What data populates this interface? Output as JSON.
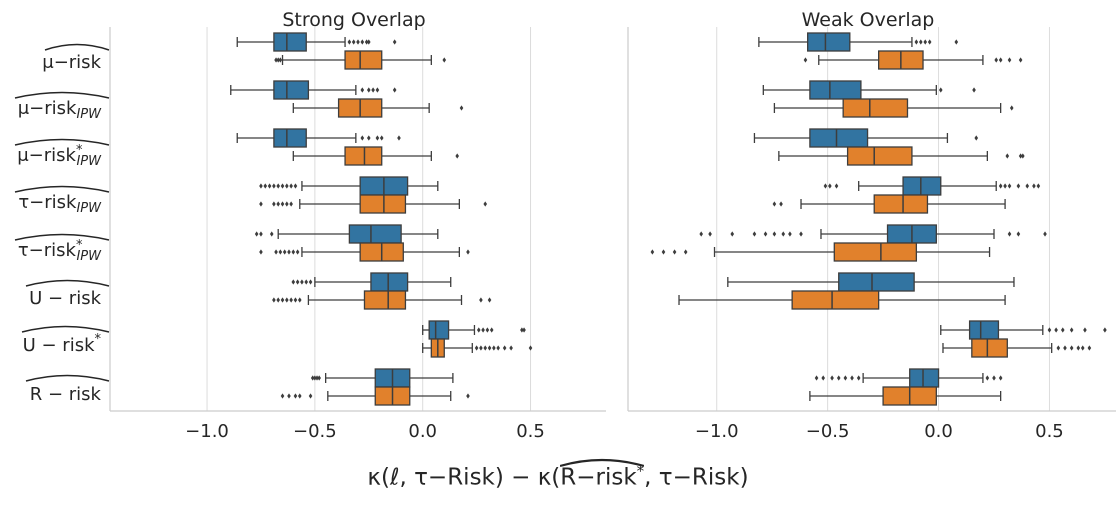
{
  "figure": {
    "xlabel": "κ(ℓ, τ−Risk) − κ(R−risk*, τ−Risk)"
  },
  "colors": {
    "blue": "#3274a1",
    "orange": "#e1812c",
    "grid": "#dcdcdc",
    "axis": "#cccccc",
    "text": "#262626"
  },
  "chart_data": [
    {
      "type": "box",
      "orientation": "horizontal",
      "title": "Strong Overlap",
      "xlim": [
        -1.45,
        0.85
      ],
      "xticks": [
        -1.0,
        -0.5,
        0.0,
        0.5
      ],
      "xtick_labels": [
        "−1.0",
        "−0.5",
        "0.0",
        "0.5"
      ],
      "grid": "vertical",
      "categories": [
        "μ−risk",
        "μ−risk_IPW",
        "μ−risk*_IPW",
        "τ−risk_IPW",
        "τ−risk*_IPW",
        "U − risk",
        "U − risk*",
        "R − risk"
      ],
      "series": [
        {
          "color": "blue",
          "boxes": [
            {
              "wl": -0.86,
              "q1": -0.69,
              "med": -0.63,
              "q3": -0.54,
              "wh": -0.36,
              "fliers": [
                -0.34,
                -0.32,
                -0.3,
                -0.28,
                -0.26,
                -0.25,
                -0.13
              ]
            },
            {
              "wl": -0.89,
              "q1": -0.69,
              "med": -0.63,
              "q3": -0.53,
              "wh": -0.31,
              "fliers": [
                -0.28,
                -0.25,
                -0.23,
                -0.21,
                -0.13
              ]
            },
            {
              "wl": -0.86,
              "q1": -0.69,
              "med": -0.63,
              "q3": -0.54,
              "wh": -0.31,
              "fliers": [
                -0.28,
                -0.25,
                -0.21,
                -0.19,
                -0.11
              ]
            },
            {
              "wl": -0.56,
              "q1": -0.29,
              "med": -0.18,
              "q3": -0.07,
              "wh": 0.07,
              "fliers": [
                -0.75,
                -0.73,
                -0.71,
                -0.69,
                -0.67,
                -0.65,
                -0.63,
                -0.61,
                -0.59
              ]
            },
            {
              "wl": -0.67,
              "q1": -0.34,
              "med": -0.24,
              "q3": -0.1,
              "wh": 0.07,
              "fliers": [
                -0.77,
                -0.75,
                -0.7
              ]
            },
            {
              "wl": -0.5,
              "q1": -0.24,
              "med": -0.16,
              "q3": -0.07,
              "wh": 0.13,
              "fliers": [
                -0.6,
                -0.58,
                -0.56,
                -0.54,
                -0.52
              ]
            },
            {
              "wl": 0.0,
              "q1": 0.03,
              "med": 0.06,
              "q3": 0.12,
              "wh": 0.24,
              "fliers": [
                0.26,
                0.28,
                0.3,
                0.32,
                0.46,
                0.47
              ]
            },
            {
              "wl": -0.45,
              "q1": -0.22,
              "med": -0.14,
              "q3": -0.06,
              "wh": 0.14,
              "fliers": [
                -0.51,
                -0.5,
                -0.49,
                -0.48
              ]
            }
          ]
        },
        {
          "color": "orange",
          "boxes": [
            {
              "wl": -0.65,
              "q1": -0.36,
              "med": -0.29,
              "q3": -0.19,
              "wh": 0.04,
              "fliers": [
                -0.68,
                -0.67,
                -0.66,
                0.1
              ]
            },
            {
              "wl": -0.6,
              "q1": -0.39,
              "med": -0.29,
              "q3": -0.19,
              "wh": 0.03,
              "fliers": [
                0.18
              ]
            },
            {
              "wl": -0.6,
              "q1": -0.36,
              "med": -0.27,
              "q3": -0.19,
              "wh": 0.04,
              "fliers": [
                0.16
              ]
            },
            {
              "wl": -0.57,
              "q1": -0.29,
              "med": -0.18,
              "q3": -0.08,
              "wh": 0.17,
              "fliers": [
                -0.75,
                -0.69,
                -0.67,
                -0.65,
                -0.63,
                -0.61,
                0.29
              ]
            },
            {
              "wl": -0.56,
              "q1": -0.29,
              "med": -0.19,
              "q3": -0.09,
              "wh": 0.17,
              "fliers": [
                -0.75,
                -0.68,
                -0.66,
                -0.64,
                -0.62,
                -0.6,
                -0.58,
                0.21
              ]
            },
            {
              "wl": -0.53,
              "q1": -0.27,
              "med": -0.16,
              "q3": -0.08,
              "wh": 0.18,
              "fliers": [
                -0.69,
                -0.67,
                -0.65,
                -0.63,
                -0.61,
                -0.59,
                -0.57,
                0.27,
                0.31
              ]
            },
            {
              "wl": 0.0,
              "q1": 0.04,
              "med": 0.07,
              "q3": 0.1,
              "wh": 0.23,
              "fliers": [
                0.25,
                0.27,
                0.29,
                0.31,
                0.33,
                0.35,
                0.38,
                0.41,
                0.5
              ]
            },
            {
              "wl": -0.44,
              "q1": -0.22,
              "med": -0.14,
              "q3": -0.06,
              "wh": 0.13,
              "fliers": [
                -0.65,
                -0.62,
                -0.59,
                -0.57,
                -0.52,
                0.21
              ]
            }
          ]
        }
      ]
    },
    {
      "type": "box",
      "orientation": "horizontal",
      "title": "Weak Overlap",
      "xlim": [
        -1.4,
        0.8
      ],
      "xticks": [
        -1.0,
        -0.5,
        0.0,
        0.5
      ],
      "xtick_labels": [
        "−1.0",
        "−0.5",
        "0.0",
        "0.5"
      ],
      "grid": "vertical",
      "categories": [
        "μ−risk",
        "μ−risk_IPW",
        "μ−risk*_IPW",
        "τ−risk_IPW",
        "τ−risk*_IPW",
        "U − risk",
        "U − risk*",
        "R − risk"
      ],
      "series": [
        {
          "color": "blue",
          "boxes": [
            {
              "wl": -0.81,
              "q1": -0.59,
              "med": -0.51,
              "q3": -0.4,
              "wh": -0.12,
              "fliers": [
                -0.1,
                -0.08,
                -0.06,
                -0.04,
                0.08
              ]
            },
            {
              "wl": -0.79,
              "q1": -0.58,
              "med": -0.49,
              "q3": -0.35,
              "wh": -0.01,
              "fliers": [
                0.01,
                0.16
              ]
            },
            {
              "wl": -0.83,
              "q1": -0.58,
              "med": -0.46,
              "q3": -0.32,
              "wh": 0.04,
              "fliers": [
                0.17
              ]
            },
            {
              "wl": -0.36,
              "q1": -0.16,
              "med": -0.08,
              "q3": 0.01,
              "wh": 0.26,
              "fliers": [
                -0.51,
                -0.49,
                -0.46,
                0.28,
                0.3,
                0.32,
                0.36,
                0.4,
                0.43,
                0.45
              ]
            },
            {
              "wl": -0.53,
              "q1": -0.23,
              "med": -0.12,
              "q3": -0.01,
              "wh": 0.25,
              "fliers": [
                -1.07,
                -1.03,
                -0.93,
                -0.83,
                -0.78,
                -0.74,
                -0.7,
                -0.67,
                -0.62,
                0.32,
                0.36,
                0.48
              ]
            },
            {
              "wl": -0.95,
              "q1": -0.45,
              "med": -0.3,
              "q3": -0.11,
              "wh": 0.34,
              "fliers": []
            },
            {
              "wl": 0.01,
              "q1": 0.14,
              "med": 0.19,
              "q3": 0.27,
              "wh": 0.47,
              "fliers": [
                0.5,
                0.53,
                0.56,
                0.6,
                0.66,
                0.75
              ]
            },
            {
              "wl": -0.34,
              "q1": -0.13,
              "med": -0.07,
              "q3": 0.0,
              "wh": 0.2,
              "fliers": [
                -0.55,
                -0.52,
                -0.48,
                -0.45,
                -0.42,
                -0.39,
                -0.36,
                0.22,
                0.25,
                0.28
              ]
            }
          ]
        },
        {
          "color": "orange",
          "boxes": [
            {
              "wl": -0.54,
              "q1": -0.27,
              "med": -0.17,
              "q3": -0.07,
              "wh": 0.2,
              "fliers": [
                -0.6,
                0.26,
                0.28,
                0.32,
                0.37
              ]
            },
            {
              "wl": -0.74,
              "q1": -0.43,
              "med": -0.31,
              "q3": -0.14,
              "wh": 0.28,
              "fliers": [
                0.33
              ]
            },
            {
              "wl": -0.72,
              "q1": -0.41,
              "med": -0.29,
              "q3": -0.12,
              "wh": 0.22,
              "fliers": [
                0.31,
                0.37,
                0.38
              ]
            },
            {
              "wl": -0.62,
              "q1": -0.29,
              "med": -0.16,
              "q3": -0.05,
              "wh": 0.3,
              "fliers": [
                -0.74,
                -0.71
              ]
            },
            {
              "wl": -1.01,
              "q1": -0.47,
              "med": -0.26,
              "q3": -0.1,
              "wh": 0.23,
              "fliers": [
                -1.29,
                -1.24,
                -1.19,
                -1.14
              ]
            },
            {
              "wl": -1.17,
              "q1": -0.66,
              "med": -0.48,
              "q3": -0.27,
              "wh": 0.3,
              "fliers": []
            },
            {
              "wl": 0.02,
              "q1": 0.15,
              "med": 0.22,
              "q3": 0.31,
              "wh": 0.51,
              "fliers": [
                0.54,
                0.57,
                0.6,
                0.63,
                0.65,
                0.68
              ]
            },
            {
              "wl": -0.58,
              "q1": -0.25,
              "med": -0.13,
              "q3": -0.01,
              "wh": 0.28,
              "fliers": []
            }
          ]
        }
      ]
    }
  ]
}
